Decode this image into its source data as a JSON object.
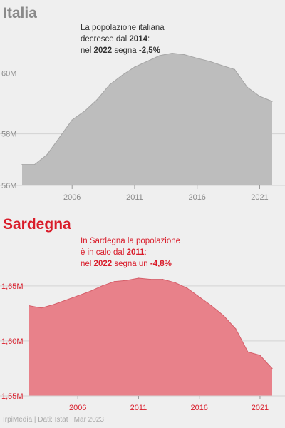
{
  "colors": {
    "italia_fill": "#bdbdbd",
    "italia_line": "#a6a6a6",
    "italia_text": "#8a8a8a",
    "sardegna_fill": "#e8818a",
    "sardegna_line": "#d55f6a",
    "sardegna_text": "#d91c2a",
    "gridline": "#d3d3d3",
    "background": "#efefef"
  },
  "footer": "IrpiMedia | Dati: Istat | Mar 2023",
  "chart_data": [
    {
      "type": "area",
      "title": "Italia",
      "annotation": [
        [
          {
            "t": "La popolazione italiana",
            "b": false
          }
        ],
        [
          {
            "t": "decresce dal ",
            "b": false
          },
          {
            "t": "2014",
            "b": true
          },
          {
            "t": ":",
            "b": false
          }
        ],
        [
          {
            "t": "nel ",
            "b": false
          },
          {
            "t": "2022",
            "b": true
          },
          {
            "t": " segna ",
            "b": false
          },
          {
            "t": "-2,5%",
            "b": true
          }
        ]
      ],
      "x": [
        2002,
        2003,
        2004,
        2005,
        2006,
        2007,
        2008,
        2009,
        2010,
        2011,
        2012,
        2013,
        2014,
        2015,
        2016,
        2017,
        2018,
        2019,
        2020,
        2021,
        2022
      ],
      "values": [
        56.99,
        56.99,
        57.32,
        57.89,
        58.46,
        58.75,
        59.13,
        59.62,
        59.93,
        60.2,
        60.39,
        60.58,
        60.66,
        60.61,
        60.49,
        60.39,
        60.25,
        60.12,
        59.54,
        59.24,
        59.07
      ],
      "xlim": [
        2001.5,
        2023.2
      ],
      "ylim": [
        56.3,
        61
      ],
      "yticks": [
        56,
        58,
        60
      ],
      "ytick_labels": [
        "56M",
        "58M",
        "60M"
      ],
      "xticks": [
        2006,
        2011,
        2016,
        2021
      ],
      "xtick_labels": [
        "2006",
        "2011",
        "2016",
        "2021"
      ],
      "grid": true
    },
    {
      "type": "area",
      "title": "Sardegna",
      "annotation": [
        [
          {
            "t": "In Sardegna la popolazione",
            "b": false
          }
        ],
        [
          {
            "t": "è in calo dal ",
            "b": false
          },
          {
            "t": "2011",
            "b": true
          },
          {
            "t": ":",
            "b": false
          }
        ],
        [
          {
            "t": "nel ",
            "b": false
          },
          {
            "t": "2022",
            "b": true
          },
          {
            "t": " segna un ",
            "b": false
          },
          {
            "t": "-4,8%",
            "b": true
          }
        ]
      ],
      "x": [
        2002,
        2003,
        2004,
        2005,
        2006,
        2007,
        2008,
        2009,
        2010,
        2011,
        2012,
        2013,
        2014,
        2015,
        2016,
        2017,
        2018,
        2019,
        2020,
        2021,
        2022
      ],
      "values": [
        1.632,
        1.63,
        1.633,
        1.637,
        1.641,
        1.645,
        1.65,
        1.654,
        1.655,
        1.657,
        1.656,
        1.656,
        1.653,
        1.648,
        1.64,
        1.632,
        1.623,
        1.611,
        1.59,
        1.587,
        1.575
      ],
      "xlim": [
        2001.5,
        2023.2
      ],
      "ylim": [
        1.55,
        1.67
      ],
      "yticks": [
        1.55,
        1.6,
        1.65
      ],
      "ytick_labels": [
        "1,55M",
        "1,60M",
        "1,65M"
      ],
      "xticks": [
        2006,
        2011,
        2016,
        2021
      ],
      "xtick_labels": [
        "2006",
        "2011",
        "2016",
        "2021"
      ],
      "grid": true
    }
  ]
}
